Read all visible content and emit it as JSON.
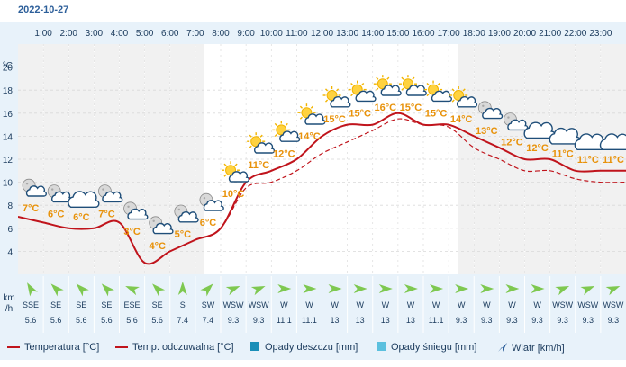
{
  "date": "2022-10-27",
  "units": {
    "temp": "°C",
    "wind_line1": "km",
    "wind_line2": "/h"
  },
  "colors": {
    "temp_line": "#c0141c",
    "feels_line": "#c0141c",
    "rain": "#1a8fb8",
    "snow": "#5bc0de",
    "label_orange": "#e8920a",
    "wind_arrow_green": "#7ec850",
    "night_shade": "#f1f1f1",
    "panel_bg": "#e8f2fa"
  },
  "legend": {
    "temperature": "Temperatura [°C]",
    "feels_like": "Temp. odczuwalna [°C]",
    "rain": "Opady deszczu [mm]",
    "snow": "Opady śniegu [mm]",
    "wind": "Wiatr [km/h]"
  },
  "chart_data": {
    "type": "line",
    "title": "",
    "x": [
      "0:00",
      "1:00",
      "2:00",
      "3:00",
      "4:00",
      "5:00",
      "6:00",
      "7:00",
      "8:00",
      "9:00",
      "10:00",
      "11:00",
      "12:00",
      "13:00",
      "14:00",
      "15:00",
      "16:00",
      "17:00",
      "18:00",
      "19:00",
      "20:00",
      "21:00",
      "22:00",
      "23:00",
      "24:00"
    ],
    "x_tick_labels": [
      "1:00",
      "2:00",
      "3:00",
      "4:00",
      "5:00",
      "6:00",
      "7:00",
      "8:00",
      "9:00",
      "10:00",
      "11:00",
      "12:00",
      "13:00",
      "14:00",
      "15:00",
      "16:00",
      "17:00",
      "18:00",
      "19:00",
      "20:00",
      "21:00",
      "22:00",
      "23:00"
    ],
    "y_ticks": [
      "4",
      "6",
      "8",
      "10",
      "12",
      "14",
      "16",
      "18",
      "20"
    ],
    "ylim": [
      2,
      22
    ],
    "ylabel": "°C",
    "grid": true,
    "series": [
      {
        "name": "Temperatura [°C]",
        "style": "solid",
        "values": [
          7,
          6.5,
          6,
          6,
          6.5,
          3,
          4,
          5,
          6,
          10,
          11,
          12,
          14,
          15,
          15,
          16,
          15,
          15,
          14,
          13,
          12,
          12,
          11,
          11,
          11
        ]
      },
      {
        "name": "Temp. odczuwalna [°C]",
        "style": "dashed",
        "values": [
          7,
          6.5,
          6,
          6,
          6.5,
          3,
          4,
          5,
          6,
          9.5,
          10,
          11,
          12.5,
          13.5,
          14.5,
          15.5,
          15,
          14.8,
          13,
          12,
          11,
          11,
          10.3,
          10,
          10
        ]
      }
    ],
    "hourly": [
      {
        "label": "7°C",
        "icon": "moon-cloud-icon",
        "wind_dir": "SSE",
        "wind_speed": "5.6",
        "wind_angle": 330
      },
      {
        "label": "6°C",
        "icon": "moon-cloud-icon",
        "wind_dir": "SE",
        "wind_speed": "5.6",
        "wind_angle": 315
      },
      {
        "label": "6°C",
        "icon": "cloud-icon",
        "wind_dir": "SE",
        "wind_speed": "5.6",
        "wind_angle": 315
      },
      {
        "label": "7°C",
        "icon": "moon-cloud-icon",
        "wind_dir": "SE",
        "wind_speed": "5.6",
        "wind_angle": 315
      },
      {
        "label": "3°C",
        "icon": "moon-cloud-icon",
        "wind_dir": "ESE",
        "wind_speed": "5.6",
        "wind_angle": 292
      },
      {
        "label": "4°C",
        "icon": "moon-cloud-icon",
        "wind_dir": "SE",
        "wind_speed": "5.6",
        "wind_angle": 315
      },
      {
        "label": "5°C",
        "icon": "moon-cloud-icon",
        "wind_dir": "S",
        "wind_speed": "7.4",
        "wind_angle": 0
      },
      {
        "label": "6°C",
        "icon": "moon-cloud-icon",
        "wind_dir": "SW",
        "wind_speed": "7.4",
        "wind_angle": 45
      },
      {
        "label": "10°C",
        "icon": "sun-cloud-icon",
        "wind_dir": "WSW",
        "wind_speed": "9.3",
        "wind_angle": 68
      },
      {
        "label": "11°C",
        "icon": "sun-cloud-icon",
        "wind_dir": "WSW",
        "wind_speed": "9.3",
        "wind_angle": 68
      },
      {
        "label": "12°C",
        "icon": "sun-cloud-icon",
        "wind_dir": "W",
        "wind_speed": "11.1",
        "wind_angle": 90
      },
      {
        "label": "14°C",
        "icon": "sun-cloud-icon",
        "wind_dir": "W",
        "wind_speed": "11.1",
        "wind_angle": 90
      },
      {
        "label": "15°C",
        "icon": "sun-cloud-icon",
        "wind_dir": "W",
        "wind_speed": "13",
        "wind_angle": 90
      },
      {
        "label": "15°C",
        "icon": "sun-cloud-icon",
        "wind_dir": "W",
        "wind_speed": "13",
        "wind_angle": 90
      },
      {
        "label": "16°C",
        "icon": "sun-cloud-icon",
        "wind_dir": "W",
        "wind_speed": "13",
        "wind_angle": 90
      },
      {
        "label": "15°C",
        "icon": "sun-cloud-icon",
        "wind_dir": "W",
        "wind_speed": "13",
        "wind_angle": 90
      },
      {
        "label": "15°C",
        "icon": "sun-cloud-icon",
        "wind_dir": "W",
        "wind_speed": "11.1",
        "wind_angle": 90
      },
      {
        "label": "14°C",
        "icon": "sun-cloud-icon",
        "wind_dir": "W",
        "wind_speed": "9.3",
        "wind_angle": 90
      },
      {
        "label": "13°C",
        "icon": "moon-cloud-icon",
        "wind_dir": "W",
        "wind_speed": "9.3",
        "wind_angle": 90
      },
      {
        "label": "12°C",
        "icon": "moon-cloud-icon",
        "wind_dir": "W",
        "wind_speed": "9.3",
        "wind_angle": 90
      },
      {
        "label": "12°C",
        "icon": "cloud-icon",
        "wind_dir": "W",
        "wind_speed": "9.3",
        "wind_angle": 90
      },
      {
        "label": "11°C",
        "icon": "cloud-icon",
        "wind_dir": "WSW",
        "wind_speed": "9.3",
        "wind_angle": 68
      },
      {
        "label": "11°C",
        "icon": "cloud-icon",
        "wind_dir": "WSW",
        "wind_speed": "9.3",
        "wind_angle": 68
      },
      {
        "label": "11°C",
        "icon": "cloud-icon",
        "wind_dir": "WSW",
        "wind_speed": "9.3",
        "wind_angle": 68
      }
    ]
  }
}
